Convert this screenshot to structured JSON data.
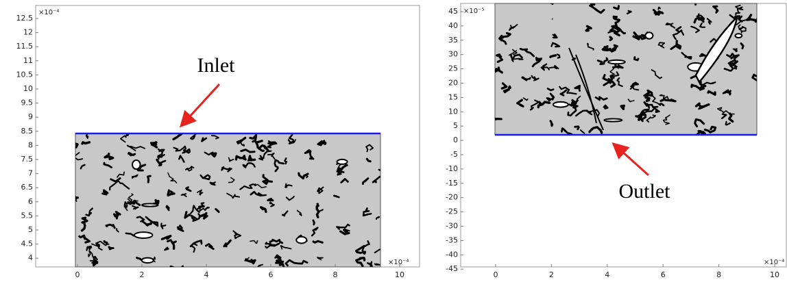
{
  "left": {
    "exponent_y": "×10⁻⁴",
    "exponent_x": "×10⁻⁴",
    "y_ticks": [
      "12.5",
      "12",
      "11.5",
      "11",
      "10.5",
      "10",
      "9.5",
      "9",
      "8.5",
      "8",
      "7.5",
      "7",
      "6.5",
      "6",
      "5.5",
      "5",
      "4.5",
      "4"
    ],
    "x_ticks": [
      "0",
      "2",
      "4",
      "6",
      "8",
      "10"
    ],
    "annotation": "Inlet"
  },
  "right": {
    "exponent_y": "×10⁻⁵",
    "exponent_x": "×10⁻⁴",
    "y_ticks": [
      "45",
      "40",
      "35",
      "30",
      "25",
      "20",
      "15",
      "10",
      "5",
      "0",
      "-5",
      "-10",
      "-15",
      "-20",
      "-25",
      "-30",
      "-35",
      "-40",
      "-45"
    ],
    "x_ticks": [
      "0",
      "2",
      "4",
      "6",
      "8",
      "10"
    ],
    "annotation": "Outlet"
  }
}
